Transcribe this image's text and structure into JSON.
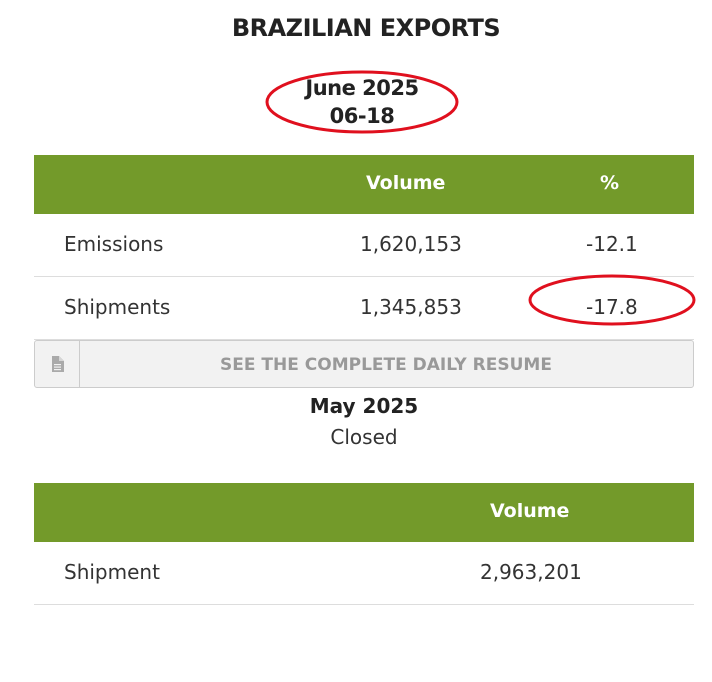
{
  "title": "BRAZILIAN EXPORTS",
  "current": {
    "month": "June 2025",
    "day": "06-18",
    "headers": {
      "label": "",
      "volume": "Volume",
      "pct": "%"
    },
    "rows": [
      {
        "label": "Emissions",
        "volume": "1,620,153",
        "pct": "-12.1"
      },
      {
        "label": "Shipments",
        "volume": "1,345,853",
        "pct": "-17.8"
      }
    ]
  },
  "resume_button": {
    "label": "SEE THE COMPLETE DAILY RESUME",
    "icon": "document-icon"
  },
  "previous": {
    "month": "May 2025",
    "status": "Closed",
    "headers": {
      "label": "",
      "volume": "Volume"
    },
    "rows": [
      {
        "label": "Shipment",
        "volume": "2,963,201"
      }
    ]
  },
  "colors": {
    "header_green": "#739a2a",
    "annotation_red": "#e0101e",
    "button_bg": "#f2f2f2",
    "button_text": "#999999"
  }
}
